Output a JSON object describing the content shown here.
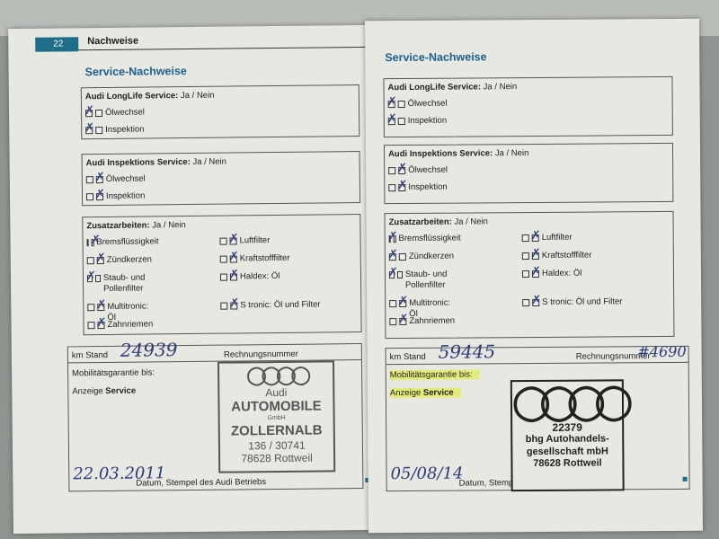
{
  "header": {
    "page_number": "22",
    "section": "Nachweise"
  },
  "pages": [
    {
      "title": "Service-Nachweise",
      "longlife": {
        "label": "Audi LongLife Service:",
        "choice": " Ja / Nein",
        "items": [
          {
            "label": "Ölwechsel",
            "marked": 0
          },
          {
            "label": "Inspektion",
            "marked": 0
          }
        ]
      },
      "inspektion": {
        "label": "Audi Inspektions Service:",
        "choice": " Ja / Nein",
        "items": [
          {
            "label": "Ölwechsel",
            "marked": 1
          },
          {
            "label": "Inspektion",
            "marked": 1
          }
        ]
      },
      "zusatz": {
        "label": "Zusatzarbeiten:",
        "choice": " Ja / Nein",
        "left": [
          {
            "label": "Bremsflüssigkeit",
            "marked": 1
          },
          {
            "label": "Zündkerzen",
            "marked": 1
          },
          {
            "label": "Staub- und Pollenfilter",
            "marked": 0
          },
          {
            "label": "Multitronic: Öl",
            "marked": 1
          },
          {
            "label": "Zahnriemen",
            "marked": 1
          }
        ],
        "right": [
          {
            "label": "Luftfilter",
            "marked": 1
          },
          {
            "label": "Kraftstofffilter",
            "marked": 1
          },
          {
            "label": "Haldex: Öl",
            "marked": 1
          },
          {
            "label": "S tronic: Öl und Filter",
            "marked": 1
          }
        ]
      },
      "record": {
        "km_label": "km Stand",
        "km_value": "24939",
        "invoice_label": "Rechnungsnummer",
        "invoice_value": "",
        "mobility_label": "Mobilitätsgarantie bis:",
        "display_label": "Anzeige",
        "display_bold": "Service",
        "date_value": "22.03.2011",
        "footer": "Datum, Stempel des Audi Betriebs",
        "stamp": [
          "Audi",
          "AUTOMOBILE",
          "GmbH",
          "ZOLLERNALB",
          "136 / 30741",
          "78628 Rottweil"
        ]
      }
    },
    {
      "title": "Service-Nachweise",
      "longlife": {
        "label": "Audi LongLife Service:",
        "choice": " Ja / Nein",
        "items": [
          {
            "label": "Ölwechsel",
            "marked": 0
          },
          {
            "label": "Inspektion",
            "marked": 0
          }
        ]
      },
      "inspektion": {
        "label": "Audi Inspektions Service:",
        "choice": " Ja / Nein",
        "items": [
          {
            "label": "Ölwechsel",
            "marked": 1
          },
          {
            "label": "Inspektion",
            "marked": 1
          }
        ]
      },
      "zusatz": {
        "label": "Zusatzarbeiten:",
        "choice": " Ja / Nein",
        "left": [
          {
            "label": "Bremsflüssigkeit",
            "marked": 0
          },
          {
            "label": "Zündkerzen",
            "marked": 0
          },
          {
            "label": "Staub- und Pollenfilter",
            "marked": 0
          },
          {
            "label": "Multitronic: Öl",
            "marked": 1
          },
          {
            "label": "Zahnriemen",
            "marked": 1
          }
        ],
        "right": [
          {
            "label": "Luftfilter",
            "marked": 1
          },
          {
            "label": "Kraftstofffilter",
            "marked": 1
          },
          {
            "label": "Haldex: Öl",
            "marked": 1
          },
          {
            "label": "S tronic: Öl und Filter",
            "marked": 1
          }
        ]
      },
      "record": {
        "km_label": "km Stand",
        "km_value": "59445",
        "invoice_label": "Rechnungsnummer",
        "invoice_value": "#4690",
        "mobility_label": "Mobilitätsgarantie bis:",
        "display_label": "Anzeige",
        "display_bold": "Service",
        "date_value": "05/08/14",
        "footer": "Datum, Stempel des Audi Betriebs",
        "stamp": [
          "22379",
          "bhg Autohandels-",
          "gesellschaft mbH",
          "78628 Rottweil"
        ]
      }
    }
  ],
  "colors": {
    "accent": "#1e5f8c",
    "page_tab": "#1e6e8a",
    "ink": "#2f3a7a",
    "highlight": "#e3ec7a"
  }
}
